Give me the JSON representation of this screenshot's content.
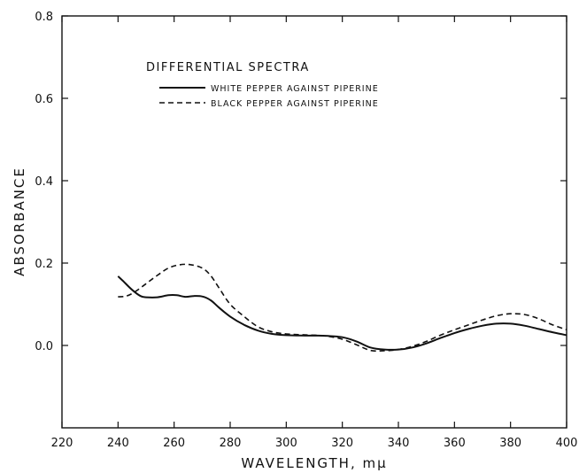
{
  "chart_data": {
    "type": "line",
    "xlabel": "WAVELENGTH, mμ",
    "ylabel": "ABSORBANCE",
    "xlim": [
      220,
      400
    ],
    "ylim": [
      -0.2,
      0.8
    ],
    "x_ticks": [
      220,
      240,
      260,
      280,
      300,
      320,
      340,
      360,
      380,
      400
    ],
    "x_tick_labels": [
      "220",
      "240",
      "260",
      "280",
      "300",
      "320",
      "340",
      "360",
      "380",
      "400"
    ],
    "y_ticks": [
      0.0,
      0.2,
      0.4,
      0.6,
      0.8
    ],
    "y_tick_labels": [
      "0.0",
      "0.2",
      "0.4",
      "0.6",
      "0.8"
    ],
    "grid": false,
    "legend": {
      "title": "DIFFERENTIAL SPECTRA",
      "placement": "top-left"
    },
    "series": [
      {
        "name": "WHITE PEPPER AGAINST PIPERINE",
        "style": "solid",
        "x": [
          240,
          242,
          245,
          248,
          250,
          254,
          258,
          261,
          264,
          267,
          270,
          273,
          276,
          280,
          285,
          290,
          295,
          300,
          305,
          310,
          315,
          320,
          325,
          330,
          335,
          340,
          345,
          350,
          355,
          360,
          365,
          370,
          375,
          380,
          385,
          390,
          395,
          400
        ],
        "y": [
          0.168,
          0.155,
          0.135,
          0.12,
          0.117,
          0.117,
          0.122,
          0.122,
          0.118,
          0.12,
          0.119,
          0.11,
          0.092,
          0.07,
          0.05,
          0.036,
          0.028,
          0.025,
          0.024,
          0.024,
          0.023,
          0.02,
          0.01,
          -0.005,
          -0.01,
          -0.01,
          -0.005,
          0.005,
          0.018,
          0.03,
          0.04,
          0.048,
          0.053,
          0.053,
          0.048,
          0.04,
          0.032,
          0.025
        ]
      },
      {
        "name": "BLACK PEPPER AGAINST PIPERINE",
        "style": "dashed",
        "x": [
          240,
          243,
          246,
          250,
          254,
          258,
          262,
          266,
          270,
          273,
          276,
          280,
          285,
          290,
          295,
          300,
          305,
          310,
          315,
          320,
          325,
          330,
          335,
          340,
          345,
          350,
          355,
          360,
          365,
          370,
          375,
          380,
          385,
          390,
          395,
          400
        ],
        "y": [
          0.118,
          0.12,
          0.13,
          0.15,
          0.17,
          0.188,
          0.196,
          0.196,
          0.188,
          0.17,
          0.14,
          0.1,
          0.07,
          0.045,
          0.033,
          0.028,
          0.026,
          0.025,
          0.022,
          0.015,
          0.002,
          -0.012,
          -0.013,
          -0.01,
          -0.002,
          0.01,
          0.025,
          0.038,
          0.05,
          0.062,
          0.072,
          0.077,
          0.075,
          0.065,
          0.05,
          0.038
        ]
      }
    ]
  }
}
